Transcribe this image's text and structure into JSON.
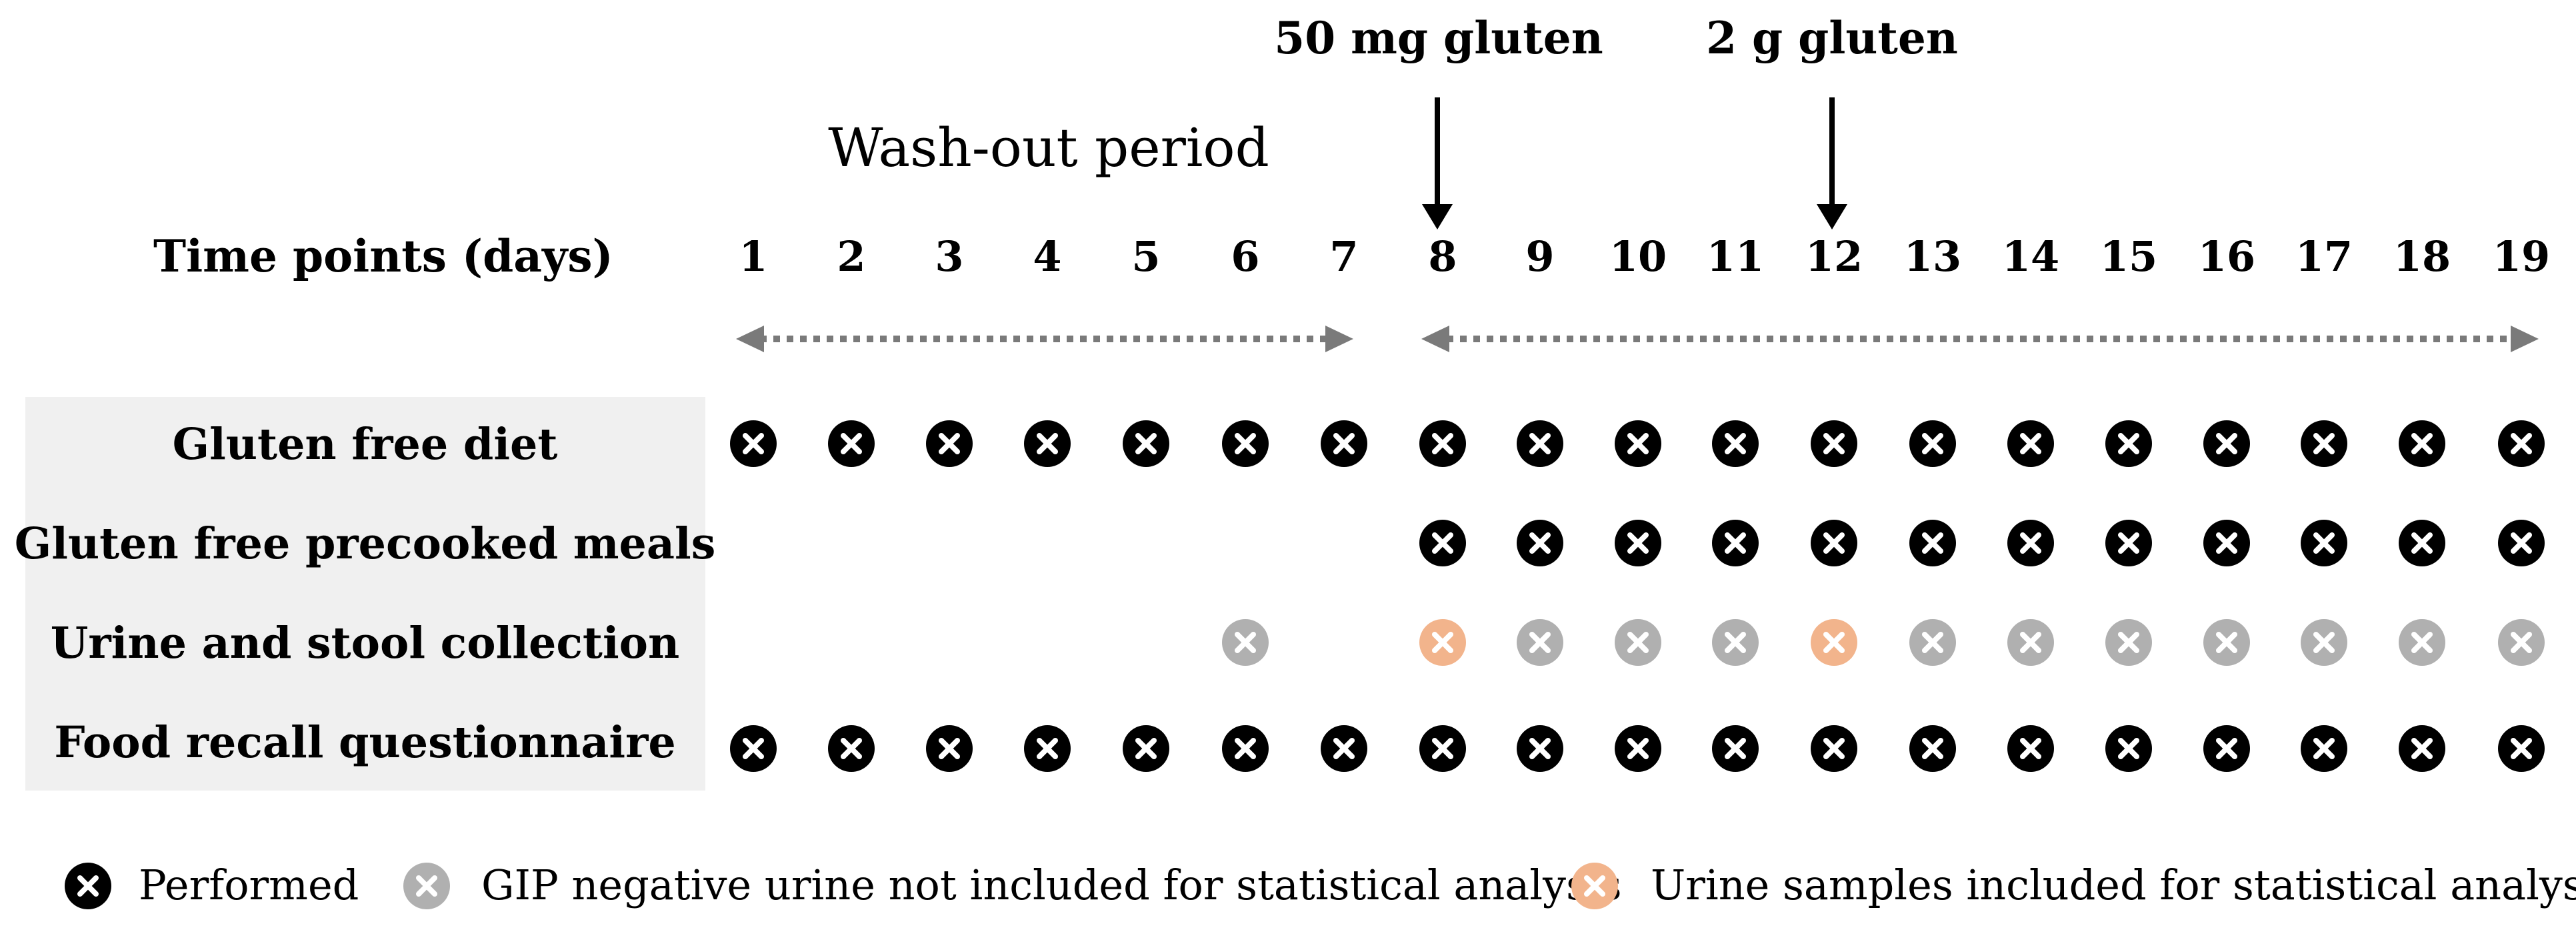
{
  "annotations": {
    "dose1": "50 mg gluten",
    "dose2": "2 g gluten",
    "washout": "Wash-out period",
    "timepoints_label": "Time points (days)"
  },
  "days": [
    "1",
    "2",
    "3",
    "4",
    "5",
    "6",
    "7",
    "8",
    "9",
    "10",
    "11",
    "12",
    "13",
    "14",
    "15",
    "16",
    "17",
    "18",
    "19"
  ],
  "rows": [
    {
      "label": "Gluten free diet",
      "marks": [
        "performed",
        "performed",
        "performed",
        "performed",
        "performed",
        "performed",
        "performed",
        "performed",
        "performed",
        "performed",
        "performed",
        "performed",
        "performed",
        "performed",
        "performed",
        "performed",
        "performed",
        "performed",
        "performed"
      ]
    },
    {
      "label": "Gluten free precooked meals",
      "marks": [
        "",
        "",
        "",
        "",
        "",
        "",
        "",
        "performed",
        "performed",
        "performed",
        "performed",
        "performed",
        "performed",
        "performed",
        "performed",
        "performed",
        "performed",
        "performed",
        "performed"
      ]
    },
    {
      "label": "Urine and stool collection",
      "marks": [
        "",
        "",
        "",
        "",
        "",
        "gip_negative",
        "",
        "included",
        "gip_negative",
        "gip_negative",
        "gip_negative",
        "included",
        "gip_negative",
        "gip_negative",
        "gip_negative",
        "gip_negative",
        "gip_negative",
        "gip_negative",
        "gip_negative"
      ]
    },
    {
      "label": "Food recall questionnaire",
      "marks": [
        "performed",
        "performed",
        "performed",
        "performed",
        "performed",
        "performed",
        "performed",
        "performed",
        "performed",
        "performed",
        "performed",
        "performed",
        "performed",
        "performed",
        "performed",
        "performed",
        "performed",
        "performed",
        "performed"
      ]
    }
  ],
  "legend": [
    {
      "type": "performed",
      "label": "Performed"
    },
    {
      "type": "gip_negative",
      "label": "GIP negative urine not included for statistical analysis"
    },
    {
      "type": "included",
      "label": "Urine samples included for statistical analysis"
    }
  ],
  "colors": {
    "performed": "#000000",
    "gip_negative": "#b0b0b0",
    "included": "#f2b48c",
    "label_bg": "#f0f0f0",
    "arrow_dotted": "#7a7a7a"
  }
}
